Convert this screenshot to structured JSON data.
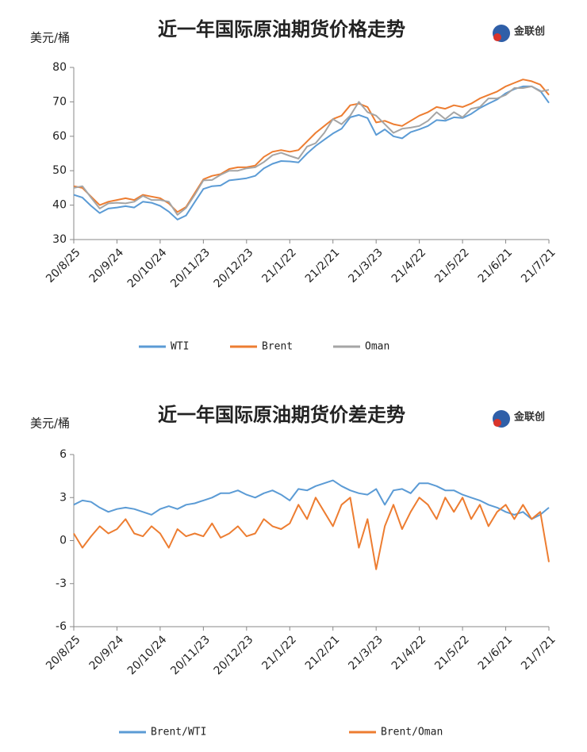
{
  "chart_data": [
    {
      "type": "line",
      "title": "近一年国际原油期货价格走势",
      "y_label": "美元/桶",
      "logo": "金联创",
      "categories": [
        "20/8/25",
        null,
        null,
        null,
        null,
        "20/9/24",
        null,
        null,
        null,
        null,
        "20/10/24",
        null,
        null,
        null,
        null,
        "20/11/23",
        null,
        null,
        null,
        null,
        "20/12/23",
        null,
        null,
        null,
        null,
        "21/1/22",
        null,
        null,
        null,
        null,
        "21/2/21",
        null,
        null,
        null,
        null,
        "21/3/23",
        null,
        null,
        null,
        null,
        "21/4/22",
        null,
        null,
        null,
        null,
        "21/5/22",
        null,
        null,
        null,
        null,
        "21/6/21",
        null,
        null,
        null,
        null,
        "21/7/21"
      ],
      "ylim": [
        30,
        80
      ],
      "yticks": [
        30,
        40,
        50,
        60,
        70,
        80
      ],
      "grid": false,
      "legend": "bottom",
      "series": [
        {
          "name": "WTI",
          "color": "#5b9bd5",
          "values": [
            43.0,
            42.2,
            39.8,
            37.7,
            39.0,
            39.3,
            39.7,
            39.3,
            41.0,
            40.7,
            39.8,
            38.1,
            35.8,
            37.0,
            40.9,
            44.7,
            45.5,
            45.7,
            47.2,
            47.5,
            47.8,
            48.5,
            50.7,
            52.0,
            52.8,
            52.7,
            52.4,
            55.0,
            57.2,
            59.0,
            60.8,
            62.2,
            65.5,
            66.2,
            65.3,
            60.4,
            62.0,
            60.0,
            59.4,
            61.2,
            62.0,
            63.0,
            64.7,
            64.5,
            65.5,
            65.3,
            66.5,
            68.2,
            69.5,
            70.7,
            72.5,
            73.7,
            74.5,
            74.5,
            73.2,
            69.7
          ]
        },
        {
          "name": "Brent",
          "color": "#ed7d31",
          "values": [
            45.5,
            45,
            42.5,
            40,
            41,
            41.5,
            42,
            41.5,
            43,
            42.5,
            42,
            40.5,
            38,
            39.5,
            43.5,
            47.5,
            48.5,
            49,
            50.5,
            51,
            51,
            51.5,
            54,
            55.5,
            56,
            55.5,
            56,
            58.5,
            61,
            63,
            65,
            66,
            69,
            69.5,
            68.5,
            64,
            64.5,
            63.5,
            63,
            64.5,
            66,
            67,
            68.5,
            68,
            69,
            68.5,
            69.5,
            71,
            72,
            73,
            74.5,
            75.5,
            76.5,
            76,
            75,
            72
          ]
        },
        {
          "name": "Oman",
          "color": "#a5a5a5",
          "values": [
            45.0,
            45.5,
            42.2,
            39.0,
            40.5,
            40.7,
            40.5,
            41.0,
            42.7,
            41.5,
            41.5,
            41.0,
            37.2,
            39.2,
            43.0,
            47.2,
            47.3,
            48.8,
            50.0,
            50.0,
            50.7,
            51.0,
            52.5,
            54.5,
            55.2,
            54.3,
            53.5,
            57.0,
            58.0,
            61.0,
            65.0,
            63.5,
            66.0,
            70.0,
            67.0,
            66.0,
            63.5,
            61.0,
            62.2,
            62.5,
            63.0,
            64.5,
            67.0,
            65.0,
            67.0,
            65.5,
            68.0,
            68.5,
            71.0,
            71.0,
            72.0,
            74.0,
            74.0,
            74.5,
            73.0,
            73.5
          ]
        }
      ]
    },
    {
      "type": "line",
      "title": "近一年国际原油期货价差走势",
      "y_label": "美元/桶",
      "logo": "金联创",
      "categories": [
        "20/8/25",
        null,
        null,
        null,
        null,
        "20/9/24",
        null,
        null,
        null,
        null,
        "20/10/24",
        null,
        null,
        null,
        null,
        "20/11/23",
        null,
        null,
        null,
        null,
        "20/12/23",
        null,
        null,
        null,
        null,
        "21/1/22",
        null,
        null,
        null,
        null,
        "21/2/21",
        null,
        null,
        null,
        null,
        "21/3/23",
        null,
        null,
        null,
        null,
        "21/4/22",
        null,
        null,
        null,
        null,
        "21/5/22",
        null,
        null,
        null,
        null,
        "21/6/21",
        null,
        null,
        null,
        null,
        "21/7/21"
      ],
      "ylim": [
        -6,
        6
      ],
      "yticks": [
        -6,
        -3,
        0,
        3,
        6
      ],
      "grid": false,
      "legend": "bottom",
      "series": [
        {
          "name": "Brent/WTI",
          "color": "#5b9bd5",
          "values": [
            2.5,
            2.8,
            2.7,
            2.3,
            2.0,
            2.2,
            2.3,
            2.2,
            2.0,
            1.8,
            2.2,
            2.4,
            2.2,
            2.5,
            2.6,
            2.8,
            3.0,
            3.3,
            3.3,
            3.5,
            3.2,
            3.0,
            3.3,
            3.5,
            3.2,
            2.8,
            3.6,
            3.5,
            3.8,
            4.0,
            4.2,
            3.8,
            3.5,
            3.3,
            3.2,
            3.6,
            2.5,
            3.5,
            3.6,
            3.3,
            4.0,
            4.0,
            3.8,
            3.5,
            3.5,
            3.2,
            3.0,
            2.8,
            2.5,
            2.3,
            2.0,
            1.8,
            2.0,
            1.5,
            1.8,
            2.3
          ]
        },
        {
          "name": "Brent/Oman",
          "color": "#ed7d31",
          "values": [
            0.5,
            -0.5,
            0.3,
            1.0,
            0.5,
            0.8,
            1.5,
            0.5,
            0.3,
            1.0,
            0.5,
            -0.5,
            0.8,
            0.3,
            0.5,
            0.3,
            1.2,
            0.2,
            0.5,
            1.0,
            0.3,
            0.5,
            1.5,
            1.0,
            0.8,
            1.2,
            2.5,
            1.5,
            3.0,
            2.0,
            1.0,
            2.5,
            3.0,
            -0.5,
            1.5,
            -2.0,
            1.0,
            2.5,
            0.8,
            2.0,
            3.0,
            2.5,
            1.5,
            3.0,
            2.0,
            3.0,
            1.5,
            2.5,
            1.0,
            2.0,
            2.5,
            1.5,
            2.5,
            1.5,
            2.0,
            -1.5
          ]
        }
      ]
    }
  ]
}
